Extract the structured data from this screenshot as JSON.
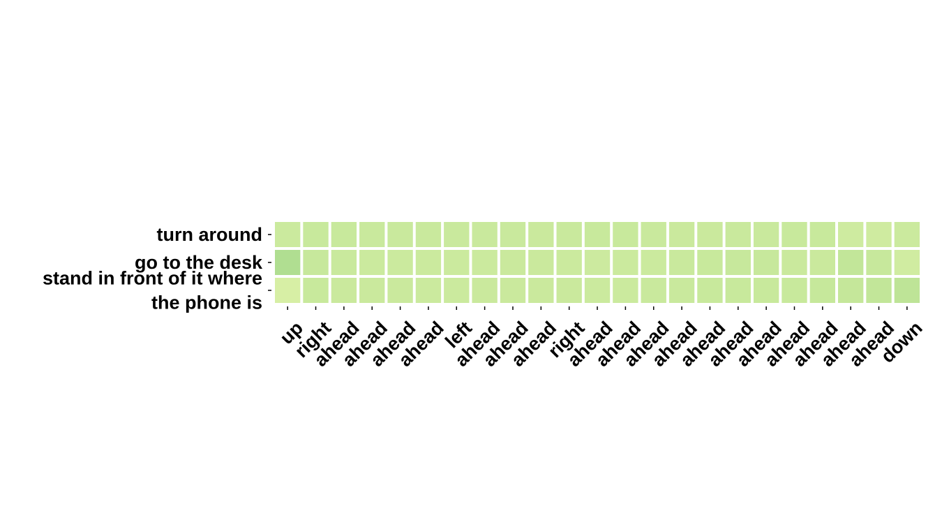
{
  "chart_data": {
    "type": "heatmap",
    "title": "",
    "xlabel": "",
    "ylabel": "",
    "x_categories": [
      "up",
      "right",
      "ahead",
      "ahead",
      "ahead",
      "ahead",
      "left",
      "ahead",
      "ahead",
      "ahead",
      "right",
      "ahead",
      "ahead",
      "ahead",
      "ahead",
      "ahead",
      "ahead",
      "ahead",
      "ahead",
      "ahead",
      "ahead",
      "ahead",
      "down"
    ],
    "y_categories": [
      [
        "turn around"
      ],
      [
        "go to the desk"
      ],
      [
        "stand in front of it where",
        "the phone is"
      ]
    ],
    "values": [
      [
        0.39,
        0.43,
        0.43,
        0.42,
        0.42,
        0.42,
        0.42,
        0.42,
        0.42,
        0.41,
        0.42,
        0.43,
        0.43,
        0.42,
        0.41,
        0.41,
        0.42,
        0.42,
        0.43,
        0.43,
        0.36,
        0.35,
        0.4
      ],
      [
        0.62,
        0.44,
        0.42,
        0.4,
        0.4,
        0.4,
        0.4,
        0.4,
        0.41,
        0.41,
        0.39,
        0.38,
        0.39,
        0.4,
        0.42,
        0.43,
        0.44,
        0.44,
        0.41,
        0.41,
        0.5,
        0.44,
        0.34
      ],
      [
        0.26,
        0.43,
        0.41,
        0.41,
        0.41,
        0.4,
        0.39,
        0.41,
        0.41,
        0.41,
        0.41,
        0.4,
        0.4,
        0.42,
        0.42,
        0.43,
        0.43,
        0.43,
        0.43,
        0.45,
        0.47,
        0.5,
        0.53
      ]
    ],
    "colormap": {
      "low": "#edf8b1",
      "mid": "#c2e699",
      "high": "#78c679",
      "range": [
        0,
        1
      ]
    },
    "colorbar": false,
    "grid": false,
    "legend": "none"
  }
}
